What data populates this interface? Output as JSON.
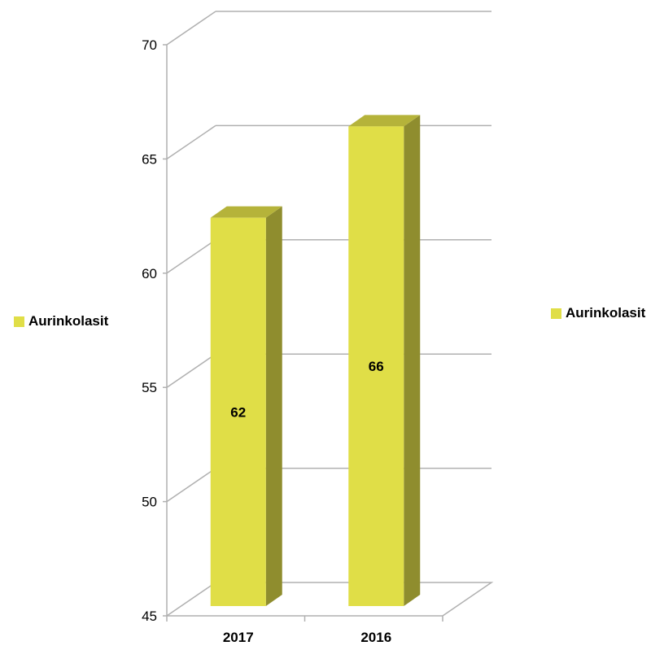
{
  "chart_data": {
    "type": "bar",
    "categories": [
      "2017",
      "2016"
    ],
    "series": [
      {
        "name": "Aurinkolasit",
        "values": [
          62,
          66
        ]
      }
    ],
    "ylim": [
      45,
      70
    ],
    "yticks": [
      45,
      50,
      55,
      60,
      65,
      70
    ],
    "grid": true,
    "data_labels": true,
    "legend_entries": [
      "Aurinkolasit",
      "Aurinkolasit"
    ],
    "colors": {
      "bar_front": "#e0de47",
      "bar_top": "#b5b33a",
      "bar_side": "#8f8d2e",
      "grid": "#b0b0b0",
      "legend_swatch": "#e0de47"
    }
  }
}
